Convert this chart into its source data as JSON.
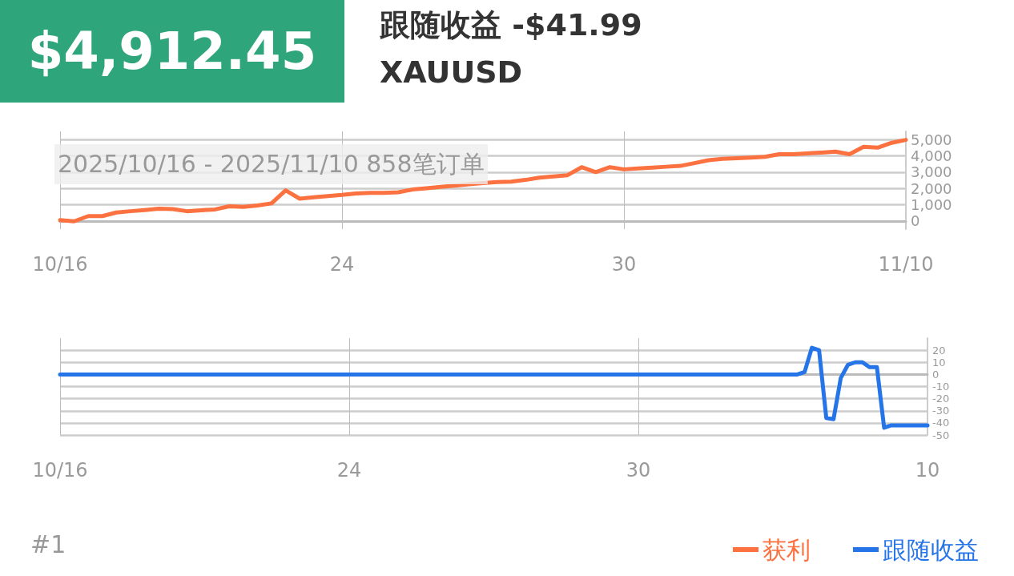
{
  "chart_data": [
    {
      "type": "line",
      "title": "跟随收益 -$41.99",
      "subtitle": "XAUUSD",
      "annotations": [
        "$4,912.45",
        "2025/10/16 - 2025/11/10  858笔订单",
        "#1"
      ],
      "categories": [
        "10/16",
        null,
        null,
        null,
        null,
        null,
        null,
        null,
        null,
        null,
        null,
        null,
        null,
        null,
        null,
        null,
        null,
        null,
        null,
        null,
        "24",
        null,
        null,
        null,
        null,
        null,
        null,
        null,
        null,
        null,
        null,
        null,
        null,
        null,
        null,
        null,
        null,
        null,
        null,
        null,
        "30",
        null,
        null,
        null,
        null,
        null,
        null,
        null,
        null,
        null,
        null,
        null,
        null,
        null,
        null,
        null,
        null,
        null,
        null,
        null,
        "11/10"
      ],
      "ylim": [
        -500,
        5500
      ],
      "yticks": [
        {
          "value": 0,
          "label": "0"
        },
        {
          "value": 1000,
          "label": "1,000"
        },
        {
          "value": 2000,
          "label": "2,000"
        },
        {
          "value": 3000,
          "label": "3,000"
        },
        {
          "value": 4000,
          "label": "4,000"
        },
        {
          "value": 5000,
          "label": "5,000"
        }
      ],
      "grid": true,
      "legend": "bottom right",
      "marker": "none",
      "series": [
        {
          "name": "获利",
          "color": "#fb7140",
          "values": [
            50,
            -20,
            300,
            300,
            520,
            600,
            670,
            750,
            730,
            600,
            660,
            710,
            900,
            870,
            950,
            1080,
            1880,
            1370,
            1450,
            1530,
            1600,
            1690,
            1730,
            1730,
            1760,
            1930,
            2010,
            2090,
            2170,
            2250,
            2330,
            2390,
            2410,
            2520,
            2660,
            2730,
            2810,
            3300,
            3000,
            3300,
            3170,
            3220,
            3270,
            3330,
            3380,
            3550,
            3730,
            3810,
            3850,
            3890,
            3940,
            4100,
            4100,
            4150,
            4200,
            4260,
            4100,
            4550,
            4500,
            4800,
            4980
          ]
        }
      ]
    },
    {
      "type": "line",
      "categories": [
        "10/16",
        null,
        null,
        null,
        null,
        null,
        null,
        null,
        null,
        null,
        null,
        null,
        null,
        null,
        null,
        null,
        null,
        null,
        null,
        null,
        null,
        null,
        null,
        null,
        null,
        null,
        null,
        null,
        null,
        null,
        null,
        null,
        null,
        null,
        null,
        null,
        null,
        null,
        null,
        null,
        "24",
        null,
        null,
        null,
        null,
        null,
        null,
        null,
        null,
        null,
        null,
        null,
        null,
        null,
        null,
        null,
        null,
        null,
        null,
        null,
        null,
        null,
        null,
        null,
        null,
        null,
        null,
        null,
        null,
        null,
        null,
        null,
        null,
        null,
        null,
        null,
        null,
        null,
        null,
        null,
        "30",
        null,
        null,
        null,
        null,
        null,
        null,
        null,
        null,
        null,
        null,
        null,
        null,
        null,
        null,
        null,
        null,
        null,
        null,
        null,
        null,
        null,
        null,
        null,
        null,
        null,
        null,
        null,
        null,
        null,
        null,
        null,
        null,
        null,
        null,
        null,
        null,
        null,
        null,
        null,
        "10"
      ],
      "ylim": [
        -50,
        30
      ],
      "yticks": [
        -50,
        -40,
        -30,
        -20,
        -10,
        0,
        10,
        20
      ],
      "grid": true,
      "legend": "bottom right",
      "marker": "none",
      "series": [
        {
          "name": "跟随收益",
          "color": "#2575e8",
          "values": [
            0,
            0,
            0,
            0,
            0,
            0,
            0,
            0,
            0,
            0,
            0,
            0,
            0,
            0,
            0,
            0,
            0,
            0,
            0,
            0,
            0,
            0,
            0,
            0,
            0,
            0,
            0,
            0,
            0,
            0,
            0,
            0,
            0,
            0,
            0,
            0,
            0,
            0,
            0,
            0,
            0,
            0,
            0,
            0,
            0,
            0,
            0,
            0,
            0,
            0,
            0,
            0,
            0,
            0,
            0,
            0,
            0,
            0,
            0,
            0,
            0,
            0,
            0,
            0,
            0,
            0,
            0,
            0,
            0,
            0,
            0,
            0,
            0,
            0,
            0,
            0,
            0,
            0,
            0,
            0,
            0,
            0,
            0,
            0,
            0,
            0,
            0,
            0,
            0,
            0,
            0,
            0,
            0,
            0,
            0,
            0,
            0,
            0,
            0,
            0,
            0,
            0,
            0,
            2,
            22,
            20,
            -36,
            -37,
            -3,
            8,
            10,
            10,
            6,
            6,
            -44,
            -42,
            -42,
            -42,
            -42,
            -42,
            -42
          ]
        }
      ]
    }
  ]
}
